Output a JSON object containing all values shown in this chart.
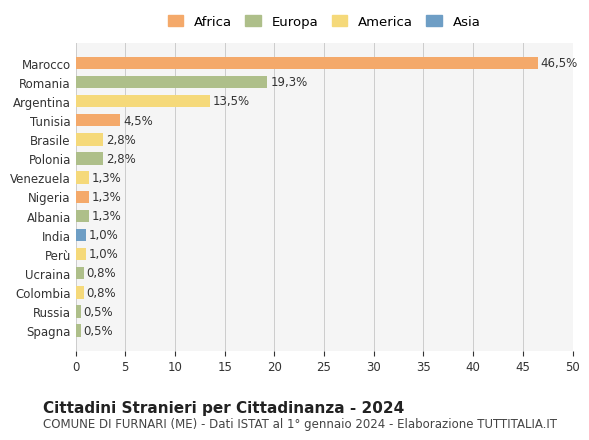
{
  "countries": [
    "Marocco",
    "Romania",
    "Argentina",
    "Tunisia",
    "Brasile",
    "Polonia",
    "Venezuela",
    "Nigeria",
    "Albania",
    "India",
    "Perù",
    "Ucraina",
    "Colombia",
    "Russia",
    "Spagna"
  ],
  "values": [
    46.5,
    19.3,
    13.5,
    4.5,
    2.8,
    2.8,
    1.3,
    1.3,
    1.3,
    1.0,
    1.0,
    0.8,
    0.8,
    0.5,
    0.5
  ],
  "labels": [
    "46,5%",
    "19,3%",
    "13,5%",
    "4,5%",
    "2,8%",
    "2,8%",
    "1,3%",
    "1,3%",
    "1,3%",
    "1,0%",
    "1,0%",
    "0,8%",
    "0,8%",
    "0,5%",
    "0,5%"
  ],
  "colors": [
    "#F4A96A",
    "#AEBF8A",
    "#F5D97A",
    "#F4A96A",
    "#F5D97A",
    "#AEBF8A",
    "#F5D97A",
    "#F4A96A",
    "#AEBF8A",
    "#6E9EC5",
    "#F5D97A",
    "#AEBF8A",
    "#F5D97A",
    "#AEBF8A",
    "#AEBF8A"
  ],
  "continent": [
    "Africa",
    "Europa",
    "America",
    "Africa",
    "America",
    "Europa",
    "America",
    "Africa",
    "Europa",
    "Asia",
    "America",
    "Europa",
    "America",
    "Europa",
    "Europa"
  ],
  "legend_colors": {
    "Africa": "#F4A96A",
    "Europa": "#AEBF8A",
    "America": "#F5D97A",
    "Asia": "#6E9EC5"
  },
  "title": "Cittadini Stranieri per Cittadinanza - 2024",
  "subtitle": "COMUNE DI FURNARI (ME) - Dati ISTAT al 1° gennaio 2024 - Elaborazione TUTTITALIA.IT",
  "xlim": [
    0,
    50
  ],
  "xticks": [
    0,
    5,
    10,
    15,
    20,
    25,
    30,
    35,
    40,
    45,
    50
  ],
  "background_color": "#ffffff",
  "grid_color": "#cccccc",
  "bar_height": 0.65,
  "label_fontsize": 8.5,
  "tick_fontsize": 8.5,
  "title_fontsize": 11,
  "subtitle_fontsize": 8.5
}
